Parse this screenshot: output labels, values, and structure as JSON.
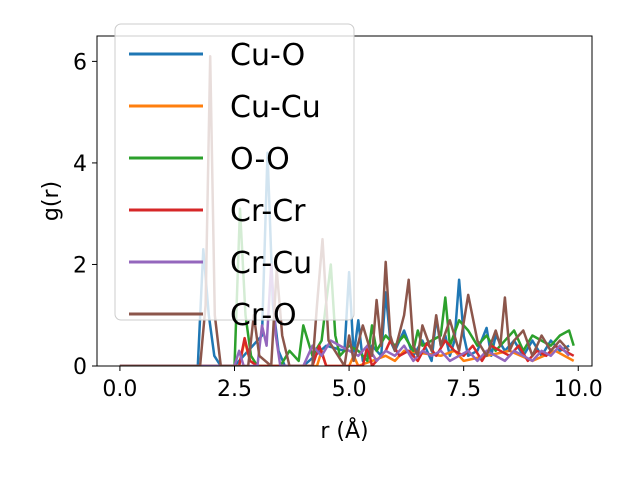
{
  "chart_data": {
    "type": "line",
    "xlabel": "r (Å)",
    "ylabel": "g(r)",
    "xlim": [
      -0.5,
      10.3
    ],
    "ylim": [
      0,
      6.5
    ],
    "xticks": [
      0.0,
      2.5,
      5.0,
      7.5,
      10.0
    ],
    "xtick_labels": [
      "0.0",
      "2.5",
      "5.0",
      "7.5",
      "10.0"
    ],
    "yticks": [
      0,
      2,
      4,
      6
    ],
    "ytick_labels": [
      "0",
      "2",
      "4",
      "6"
    ],
    "grid": false,
    "legend_position": "upper-left",
    "series": [
      {
        "name": "Cu-O",
        "color": "#1f77b4",
        "x": [
          0.0,
          1.7,
          1.82,
          1.94,
          2.06,
          2.2,
          2.5,
          3.1,
          3.22,
          3.34,
          3.46,
          3.6,
          4.0,
          4.5,
          4.9,
          5.0,
          5.1,
          5.2,
          5.3,
          5.5,
          5.7,
          5.8,
          5.9,
          6.0,
          6.2,
          6.4,
          6.6,
          6.8,
          6.9,
          7.0,
          7.1,
          7.2,
          7.3,
          7.4,
          7.5,
          7.6,
          7.8,
          8.0,
          8.1,
          8.2,
          8.4,
          8.6,
          8.8,
          9.0,
          9.2,
          9.4,
          9.6,
          9.8
        ],
        "y": [
          0,
          0,
          2.3,
          1.0,
          0.2,
          0,
          0,
          0.6,
          4.2,
          1.2,
          0.3,
          0,
          0,
          0.4,
          0.3,
          1.85,
          0.2,
          0.9,
          0.1,
          0.4,
          0.2,
          1.45,
          0.5,
          0.3,
          0.7,
          0.2,
          0.5,
          0.1,
          0.95,
          0.4,
          0.6,
          0.2,
          0.5,
          1.7,
          0.6,
          0.2,
          0.3,
          0.75,
          0.2,
          0.6,
          0.3,
          0.5,
          0.2,
          0.5,
          0.2,
          0.5,
          0.3,
          0.4
        ]
      },
      {
        "name": "Cu-Cu",
        "color": "#ff7f0e",
        "x": [
          0.0,
          2.6,
          2.72,
          2.84,
          3.0,
          4.3,
          4.4,
          4.5,
          5.0,
          5.1,
          5.2,
          5.8,
          6.0,
          6.2,
          7.0,
          7.3,
          7.5,
          8.0,
          8.5,
          9.0,
          9.5,
          9.9
        ],
        "y": [
          0,
          0,
          0.5,
          0.1,
          0,
          0,
          0.3,
          0,
          0,
          0.2,
          0,
          0.2,
          0.1,
          0.3,
          0.2,
          0.3,
          0.1,
          0.2,
          0.3,
          0.1,
          0.3,
          0.1
        ]
      },
      {
        "name": "O-O",
        "color": "#2ca02c",
        "x": [
          0.0,
          2.5,
          2.62,
          2.74,
          2.86,
          3.0,
          3.5,
          3.7,
          3.9,
          4.0,
          4.2,
          4.4,
          4.6,
          4.7,
          4.8,
          5.0,
          5.2,
          5.4,
          5.5,
          5.6,
          5.8,
          6.0,
          6.2,
          6.4,
          6.5,
          6.6,
          6.8,
          7.0,
          7.1,
          7.2,
          7.4,
          7.6,
          7.8,
          8.0,
          8.2,
          8.4,
          8.6,
          8.8,
          9.0,
          9.2,
          9.4,
          9.6,
          9.8,
          9.9
        ],
        "y": [
          0,
          0,
          3.1,
          1.0,
          0.2,
          0,
          0,
          0.3,
          0.1,
          0.8,
          0.2,
          0.5,
          2.0,
          0.6,
          0.2,
          0.4,
          0.3,
          0.1,
          0.8,
          0.3,
          0.6,
          0.4,
          0.6,
          0.3,
          0.7,
          0.4,
          0.5,
          0.6,
          1.35,
          0.4,
          0.9,
          0.7,
          0.4,
          0.6,
          0.3,
          0.5,
          0.7,
          0.3,
          0.6,
          0.5,
          0.4,
          0.6,
          0.7,
          0.4
        ]
      },
      {
        "name": "Cr-Cr",
        "color": "#d62728",
        "x": [
          0.0,
          2.6,
          2.72,
          2.84,
          3.0,
          4.2,
          4.35,
          4.5,
          5.3,
          5.4,
          5.5,
          5.8,
          5.9,
          6.1,
          6.3,
          6.5,
          6.7,
          6.9,
          7.1,
          7.3,
          7.5,
          7.7,
          7.9,
          8.1,
          8.3,
          8.5,
          8.7,
          8.9,
          9.1,
          9.3,
          9.5,
          9.7,
          9.9
        ],
        "y": [
          0,
          0,
          0.55,
          0.1,
          0,
          0,
          0.4,
          0,
          0,
          0.4,
          0,
          0.3,
          0.5,
          0.2,
          0.3,
          0.1,
          0.45,
          0.2,
          0.5,
          0.3,
          0.2,
          0.4,
          0.1,
          0.4,
          0.3,
          0.2,
          0.4,
          0.1,
          0.3,
          0.2,
          0.4,
          0.3,
          0.2
        ]
      },
      {
        "name": "Cr-Cu",
        "color": "#9467bd",
        "x": [
          0.0,
          2.5,
          2.6,
          2.7,
          3.0,
          3.1,
          3.2,
          3.3,
          3.4,
          3.5,
          4.0,
          4.2,
          4.4,
          4.6,
          5.0,
          5.2,
          5.4,
          5.6,
          5.8,
          6.0,
          6.2,
          6.4,
          6.6,
          6.8,
          7.0,
          7.2,
          7.4,
          7.6,
          7.8,
          8.0,
          8.2,
          8.4,
          8.6,
          8.8,
          9.0,
          9.2,
          9.4,
          9.6,
          9.8
        ],
        "y": [
          0,
          0,
          0.3,
          0,
          0,
          0.8,
          0.4,
          2.0,
          0.6,
          0,
          0,
          0.4,
          0.2,
          0.5,
          0.3,
          0.2,
          0.4,
          0.1,
          0.3,
          0.2,
          0.4,
          0.1,
          0.3,
          0.2,
          0.3,
          0.1,
          0.2,
          0.3,
          0.1,
          0.3,
          0.2,
          0.1,
          0.3,
          0.2,
          0.1,
          0.3,
          0.2,
          0.4,
          0.2
        ]
      },
      {
        "name": "Cr-O",
        "color": "#8c564b",
        "x": [
          0.0,
          1.75,
          1.87,
          1.97,
          2.07,
          2.2,
          2.8,
          2.92,
          3.04,
          3.3,
          3.42,
          3.54,
          3.7,
          4.2,
          4.3,
          4.42,
          4.55,
          4.9,
          5.0,
          5.1,
          5.3,
          5.5,
          5.6,
          5.7,
          5.8,
          5.9,
          6.0,
          6.2,
          6.3,
          6.4,
          6.5,
          6.6,
          6.8,
          6.9,
          7.0,
          7.2,
          7.4,
          7.6,
          7.8,
          8.0,
          8.2,
          8.3,
          8.4,
          8.5,
          8.6,
          8.8,
          9.0,
          9.2,
          9.4,
          9.6,
          9.8
        ],
        "y": [
          0,
          0,
          1.2,
          6.1,
          1.0,
          0,
          0,
          1.0,
          0.2,
          0,
          1.9,
          0.6,
          0,
          0,
          1.2,
          2.5,
          0.5,
          0,
          0.6,
          0.1,
          0.8,
          0.2,
          1.3,
          0.4,
          2.05,
          0.6,
          0.3,
          1.0,
          1.7,
          0.4,
          0.2,
          0.8,
          0.3,
          1.0,
          0.4,
          0.9,
          0.3,
          1.4,
          0.5,
          0.2,
          0.7,
          0.4,
          1.35,
          0.3,
          0.5,
          0.7,
          0.2,
          0.6,
          0.3,
          0.5,
          0.3
        ]
      }
    ]
  }
}
